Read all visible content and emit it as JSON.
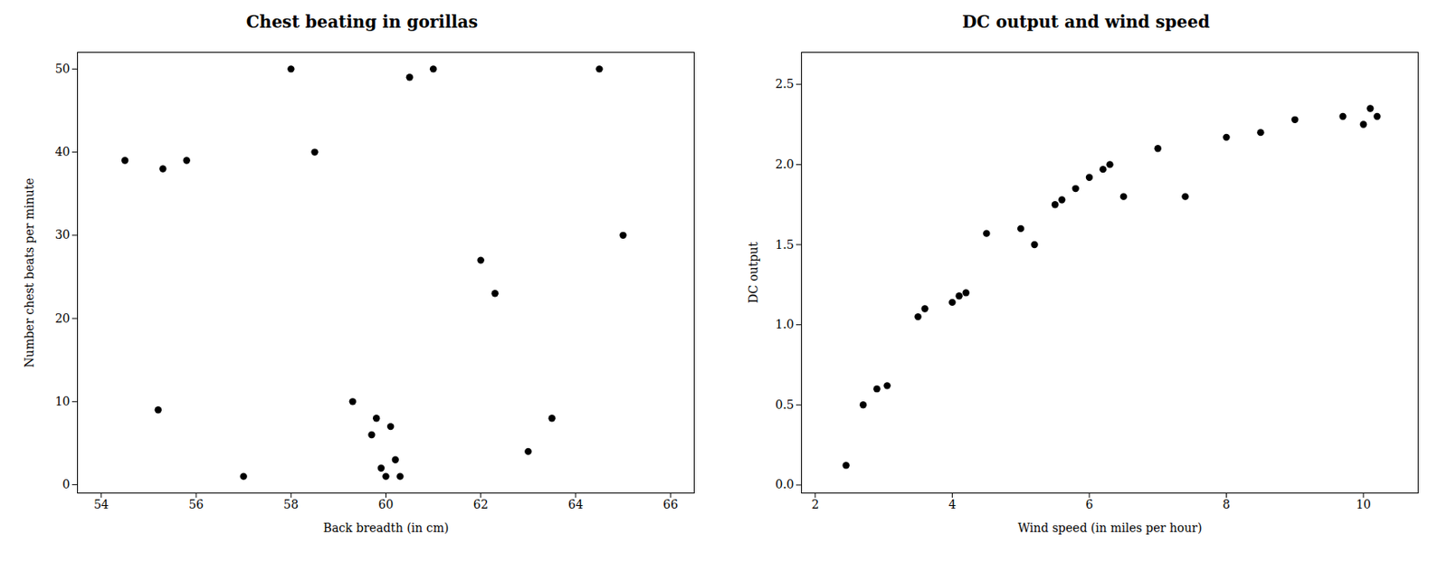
{
  "chart_data": [
    {
      "type": "scatter",
      "title": "Chest beating in gorillas",
      "x_label": "Back breadth (in cm)",
      "y_label": "Number chest beats per minute",
      "x": [
        54.5,
        55.3,
        55.8,
        55.2,
        57.0,
        58.0,
        58.5,
        59.3,
        59.7,
        59.8,
        59.9,
        60.0,
        60.1,
        60.2,
        60.3,
        60.5,
        61.0,
        62.0,
        62.3,
        63.0,
        63.5,
        64.5,
        65.0
      ],
      "values": [
        39,
        38,
        39,
        9,
        1,
        50,
        40,
        10,
        6,
        8,
        2,
        1,
        7,
        3,
        1,
        49,
        50,
        27,
        23,
        4,
        8,
        50,
        30
      ],
      "xlim": [
        53.5,
        66.5
      ],
      "ylim": [
        -1,
        52
      ],
      "xticks": [
        54,
        56,
        58,
        60,
        62,
        64,
        66
      ],
      "yticks": [
        0,
        10,
        20,
        30,
        40,
        50
      ],
      "color": "#000000"
    },
    {
      "type": "scatter",
      "title": "DC output and wind speed",
      "x_label": "Wind speed (in miles per hour)",
      "y_label": "DC output",
      "x": [
        2.45,
        2.7,
        2.9,
        3.05,
        3.5,
        3.6,
        4.0,
        4.1,
        4.2,
        4.5,
        5.0,
        5.2,
        5.5,
        5.6,
        5.8,
        6.0,
        6.2,
        6.3,
        6.5,
        7.0,
        7.4,
        8.0,
        8.5,
        9.0,
        9.7,
        10.0,
        10.1,
        10.2
      ],
      "values": [
        0.123,
        0.5,
        0.6,
        0.62,
        1.05,
        1.1,
        1.14,
        1.18,
        1.2,
        1.57,
        1.6,
        1.5,
        1.75,
        1.78,
        1.85,
        1.92,
        1.97,
        2.0,
        1.8,
        2.1,
        1.8,
        2.17,
        2.2,
        2.28,
        2.3,
        2.25,
        2.35,
        2.3
      ],
      "xlim": [
        1.8,
        10.8
      ],
      "ylim": [
        -0.05,
        2.7
      ],
      "xticks": [
        2,
        4,
        6,
        8,
        10
      ],
      "yticks": [
        {
          "value": 0,
          "label": "0.0"
        },
        0.5,
        {
          "value": 1,
          "label": "1.0"
        },
        1.5,
        {
          "value": 2,
          "label": "2.0"
        },
        2.5
      ],
      "color": "#000000"
    }
  ]
}
